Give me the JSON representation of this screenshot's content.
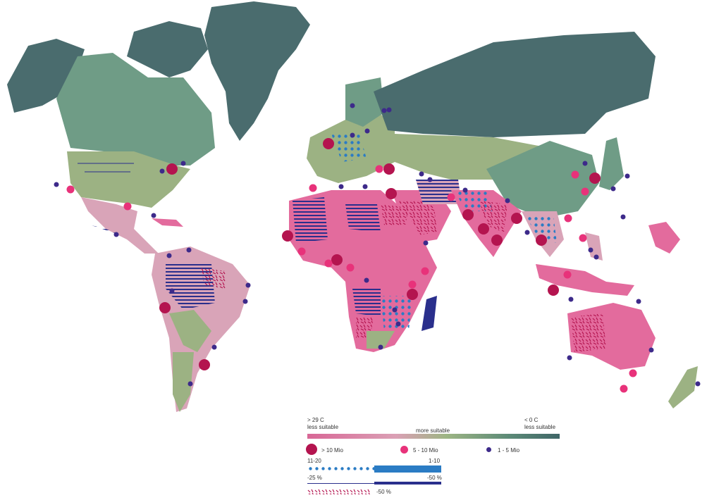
{
  "colors": {
    "hot": "#e36b9d",
    "warm": "#d9a4b8",
    "mild": "#9cb283",
    "cool": "#6f9c86",
    "cold": "#4a6c6e",
    "city_large": "#b4144f",
    "city_medium": "#e8327a",
    "city_small": "#3d2a8a",
    "stripe": "#2a2f8c",
    "dots": "#2b7cc4"
  },
  "legend": {
    "temp_left": "> 29 C\nless suitable",
    "temp_left_1": "> 29 C",
    "temp_left_2": "less suitable",
    "temp_mid": "more suitable",
    "temp_right_1": "< 0 C",
    "temp_right_2": "less suitable",
    "city_large": "> 10 Mio",
    "city_medium": "5 - 10 Mio",
    "city_small": "1 - 5 Mio",
    "dots_left": "11-20",
    "dots_right": "1-10",
    "stripe_left": "-25 %",
    "stripe_right": "-50 %",
    "squiggle": "-50 %"
  }
}
